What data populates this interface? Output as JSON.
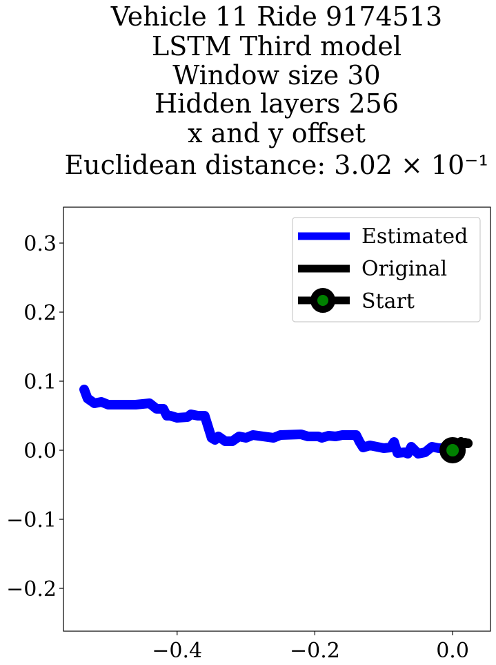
{
  "chart_data": {
    "type": "line",
    "title_lines": [
      "Vehicle 11 Ride 9174513",
      "LSTM Third model",
      "Window size 30",
      "Hidden layers 256",
      "x and y offset",
      "Euclidean distance: 3.02 × 10⁻¹"
    ],
    "xlabel": "",
    "ylabel": "",
    "xlim": [
      -0.565,
      0.055
    ],
    "ylim": [
      -0.262,
      0.352
    ],
    "xticks": [
      -0.4,
      -0.2,
      0.0
    ],
    "xtick_labels": [
      "−0.4",
      "−0.2",
      "0.0"
    ],
    "yticks": [
      0.3,
      0.2,
      0.1,
      0.0,
      -0.1,
      -0.2
    ],
    "ytick_labels": [
      "0.3",
      "0.2",
      "0.1",
      "0.0",
      "−0.1",
      "−0.2"
    ],
    "grid": false,
    "legend_position": "top-right",
    "series": [
      {
        "name": "Estimated",
        "color": "#0000ff",
        "x": [
          0.0,
          -0.01,
          -0.02,
          -0.03,
          -0.035,
          -0.04,
          -0.05,
          -0.06,
          -0.065,
          -0.07,
          -0.08,
          -0.085,
          -0.09,
          -0.1,
          -0.12,
          -0.13,
          -0.135,
          -0.14,
          -0.15,
          -0.16,
          -0.17,
          -0.18,
          -0.19,
          -0.195,
          -0.2,
          -0.21,
          -0.22,
          -0.25,
          -0.26,
          -0.29,
          -0.3,
          -0.31,
          -0.32,
          -0.33,
          -0.34,
          -0.345,
          -0.35,
          -0.36,
          -0.37,
          -0.38,
          -0.385,
          -0.4,
          -0.41,
          -0.415,
          -0.42,
          -0.43,
          -0.44,
          -0.46,
          -0.48,
          -0.5,
          -0.51,
          -0.52,
          -0.53,
          -0.535
        ],
        "y": [
          0.0,
          0.003,
          0.003,
          0.005,
          0.001,
          -0.003,
          -0.005,
          0.005,
          -0.005,
          -0.003,
          -0.004,
          0.012,
          0.004,
          0.003,
          0.007,
          0.004,
          0.012,
          0.022,
          0.022,
          0.022,
          0.02,
          0.021,
          0.018,
          0.02,
          0.02,
          0.02,
          0.023,
          0.022,
          0.018,
          0.022,
          0.018,
          0.02,
          0.013,
          0.013,
          0.02,
          0.015,
          0.018,
          0.05,
          0.05,
          0.052,
          0.048,
          0.047,
          0.05,
          0.05,
          0.06,
          0.06,
          0.068,
          0.066,
          0.066,
          0.066,
          0.07,
          0.068,
          0.075,
          0.088
        ]
      },
      {
        "name": "Original",
        "color": "#000000",
        "x": [
          0.0,
          0.004,
          0.008,
          0.012,
          0.015,
          0.018,
          0.02,
          0.022
        ],
        "y": [
          0.0,
          0.005,
          0.01,
          0.012,
          0.01,
          0.011,
          0.01,
          0.01
        ]
      },
      {
        "name": "Start",
        "color": "#000000",
        "marker_color": "#008000",
        "x": [
          0.0
        ],
        "y": [
          0.0
        ]
      }
    ]
  }
}
